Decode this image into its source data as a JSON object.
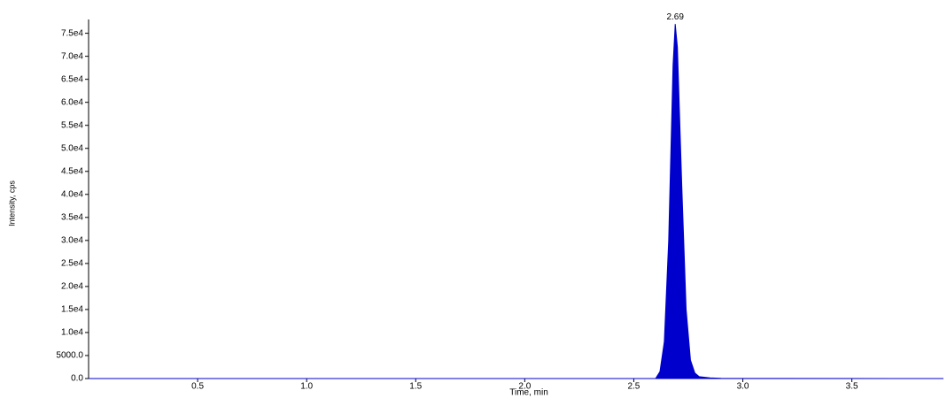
{
  "chart_data": {
    "type": "area",
    "x_label": "Time, min",
    "y_label": "Intensity, cps",
    "peak_label": "2.69",
    "color": "#0000cc",
    "x": [
      0,
      2.6,
      2.62,
      2.64,
      2.66,
      2.68,
      2.69,
      2.7,
      2.72,
      2.74,
      2.76,
      2.78,
      2.8,
      2.85,
      2.9,
      3.92
    ],
    "values": [
      0,
      0,
      1500,
      8000,
      30000,
      68000,
      77000,
      72000,
      42000,
      15000,
      4000,
      1200,
      400,
      150,
      50,
      0
    ],
    "xlim": [
      0,
      3.92
    ],
    "ylim": [
      0,
      78000
    ],
    "xticks": [
      0.5,
      {
        "value": 1,
        "label": "1.0"
      },
      1.5,
      {
        "value": 2,
        "label": "2.0"
      },
      2.5,
      {
        "value": 3,
        "label": "3.0"
      },
      3.5
    ],
    "yticks": [
      {
        "value": 0,
        "label": "0.0"
      },
      {
        "value": 5000,
        "label": "5000.0"
      },
      {
        "value": 10000,
        "label": "1.0e4"
      },
      {
        "value": 15000,
        "label": "1.5e4"
      },
      {
        "value": 20000,
        "label": "2.0e4"
      },
      {
        "value": 25000,
        "label": "2.5e4"
      },
      {
        "value": 30000,
        "label": "3.0e4"
      },
      {
        "value": 35000,
        "label": "3.5e4"
      },
      {
        "value": 40000,
        "label": "4.0e4"
      },
      {
        "value": 45000,
        "label": "4.5e4"
      },
      {
        "value": 50000,
        "label": "5.0e4"
      },
      {
        "value": 55000,
        "label": "5.5e4"
      },
      {
        "value": 60000,
        "label": "6.0e4"
      },
      {
        "value": 65000,
        "label": "6.5e4"
      },
      {
        "value": 70000,
        "label": "7.0e4"
      },
      {
        "value": 75000,
        "label": "7.5e4"
      }
    ]
  }
}
